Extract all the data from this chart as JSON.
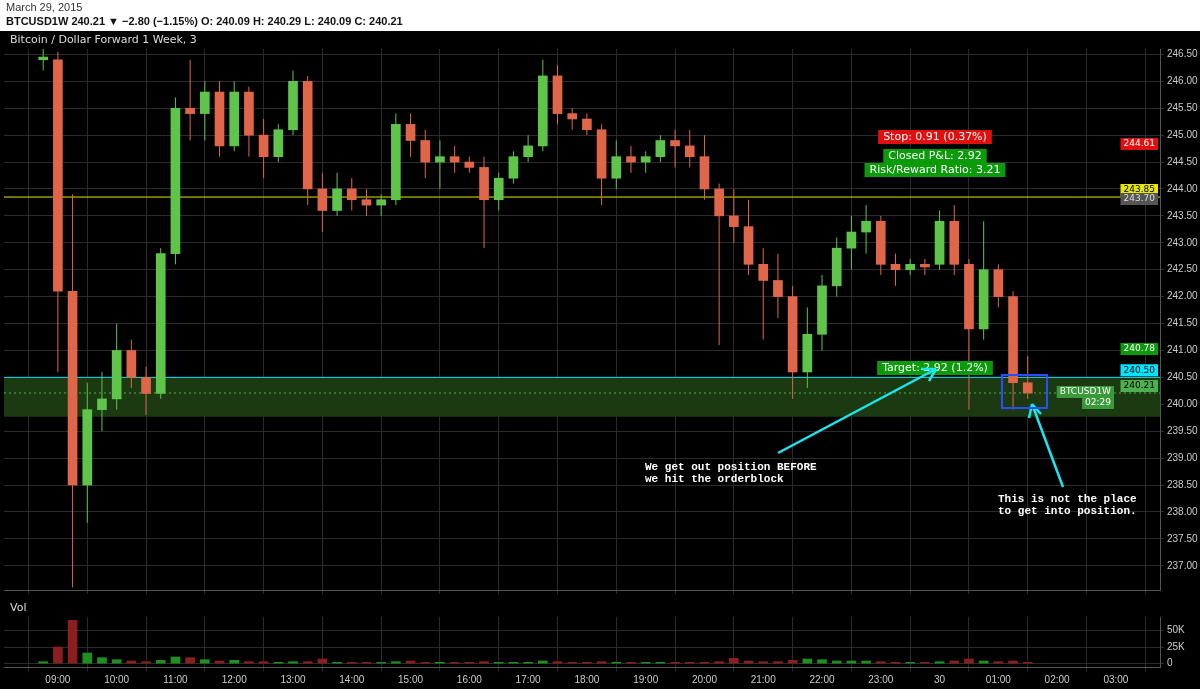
{
  "chart_data": [
    {
      "type": "candlestick",
      "title": "Bitcoin / Dollar Forward 1 Week, 3",
      "subtitle": "March 29, 2015",
      "x": [
        "2015-03-29T08:45",
        "2015-03-29T09:00",
        "2015-03-29T09:15",
        "2015-03-29T09:30",
        "2015-03-29T09:45",
        "2015-03-29T10:00",
        "2015-03-29T10:15",
        "2015-03-29T10:30",
        "2015-03-29T10:45",
        "2015-03-29T11:00",
        "2015-03-29T11:15",
        "2015-03-29T11:30",
        "2015-03-29T11:45",
        "2015-03-29T12:00",
        "2015-03-29T12:15",
        "2015-03-29T12:30",
        "2015-03-29T12:45",
        "2015-03-29T13:00",
        "2015-03-29T13:15",
        "2015-03-29T13:30",
        "2015-03-29T13:45",
        "2015-03-29T14:00",
        "2015-03-29T14:15",
        "2015-03-29T14:30",
        "2015-03-29T14:45",
        "2015-03-29T15:00",
        "2015-03-29T15:15",
        "2015-03-29T15:30",
        "2015-03-29T15:45",
        "2015-03-29T16:00",
        "2015-03-29T16:15",
        "2015-03-29T16:30",
        "2015-03-29T16:45",
        "2015-03-29T17:00",
        "2015-03-29T17:15",
        "2015-03-29T17:30",
        "2015-03-29T17:45",
        "2015-03-29T18:00",
        "2015-03-29T18:15",
        "2015-03-29T18:30",
        "2015-03-29T18:45",
        "2015-03-29T19:00",
        "2015-03-29T19:15",
        "2015-03-29T19:30",
        "2015-03-29T19:45",
        "2015-03-29T20:00",
        "2015-03-29T20:15",
        "2015-03-29T20:30",
        "2015-03-29T20:45",
        "2015-03-29T21:00",
        "2015-03-29T21:15",
        "2015-03-29T21:30",
        "2015-03-29T21:45",
        "2015-03-29T22:00",
        "2015-03-29T22:15",
        "2015-03-29T22:30",
        "2015-03-29T22:45",
        "2015-03-29T23:00",
        "2015-03-29T23:15",
        "2015-03-29T23:30",
        "2015-03-29T23:45",
        "2015-03-30T00:00",
        "2015-03-30T00:15",
        "2015-03-30T00:30",
        "2015-03-30T00:45",
        "2015-03-30T01:00",
        "2015-03-30T01:15",
        "2015-03-30T01:30"
      ],
      "ohlc": [
        [
          246.4,
          246.6,
          246.2,
          246.45
        ],
        [
          246.4,
          246.55,
          240.6,
          242.1
        ],
        [
          242.1,
          243.9,
          236.6,
          238.5
        ],
        [
          238.5,
          240.4,
          237.8,
          239.9
        ],
        [
          239.9,
          240.6,
          239.5,
          240.1
        ],
        [
          240.1,
          241.5,
          239.9,
          241.0
        ],
        [
          241.0,
          241.2,
          240.3,
          240.5
        ],
        [
          240.5,
          240.7,
          239.8,
          240.2
        ],
        [
          240.2,
          242.9,
          240.1,
          242.8
        ],
        [
          242.8,
          245.7,
          242.6,
          245.5
        ],
        [
          245.5,
          246.4,
          244.9,
          245.4
        ],
        [
          245.4,
          246.0,
          244.9,
          245.8
        ],
        [
          245.8,
          246.0,
          244.6,
          244.8
        ],
        [
          244.8,
          246.0,
          244.7,
          245.8
        ],
        [
          245.8,
          245.9,
          244.6,
          245.0
        ],
        [
          245.0,
          245.3,
          244.2,
          244.6
        ],
        [
          244.6,
          245.2,
          244.5,
          245.1
        ],
        [
          245.1,
          246.2,
          245.0,
          246.0
        ],
        [
          246.0,
          246.1,
          243.7,
          244.0
        ],
        [
          244.0,
          244.3,
          243.2,
          243.6
        ],
        [
          243.6,
          244.3,
          243.5,
          244.0
        ],
        [
          244.0,
          244.2,
          243.6,
          243.8
        ],
        [
          243.8,
          244.0,
          243.5,
          243.7
        ],
        [
          243.7,
          243.9,
          243.5,
          243.8
        ],
        [
          243.8,
          245.4,
          243.7,
          245.2
        ],
        [
          245.2,
          245.4,
          244.6,
          244.9
        ],
        [
          244.9,
          245.1,
          244.2,
          244.5
        ],
        [
          244.5,
          244.9,
          244.0,
          244.6
        ],
        [
          244.6,
          244.8,
          244.3,
          244.5
        ],
        [
          244.5,
          244.6,
          244.3,
          244.4
        ],
        [
          244.4,
          244.6,
          242.9,
          243.8
        ],
        [
          243.8,
          244.3,
          243.6,
          244.2
        ],
        [
          244.2,
          244.7,
          244.1,
          244.6
        ],
        [
          244.6,
          245.0,
          244.5,
          244.8
        ],
        [
          244.8,
          246.4,
          244.7,
          246.1
        ],
        [
          246.1,
          246.3,
          245.2,
          245.4
        ],
        [
          245.4,
          245.5,
          245.1,
          245.3
        ],
        [
          245.3,
          245.4,
          245.0,
          245.1
        ],
        [
          245.1,
          245.2,
          243.7,
          244.2
        ],
        [
          244.2,
          244.9,
          244.0,
          244.6
        ],
        [
          244.6,
          244.8,
          244.3,
          244.5
        ],
        [
          244.5,
          244.7,
          244.3,
          244.6
        ],
        [
          244.6,
          245.0,
          244.5,
          244.9
        ],
        [
          244.9,
          245.1,
          244.4,
          244.8
        ],
        [
          244.8,
          245.1,
          244.4,
          244.6
        ],
        [
          244.6,
          245.0,
          243.8,
          244.0
        ],
        [
          244.0,
          244.1,
          241.1,
          243.5
        ],
        [
          243.5,
          244.0,
          243.0,
          243.3
        ],
        [
          243.3,
          243.8,
          242.4,
          242.6
        ],
        [
          242.6,
          242.9,
          241.2,
          242.3
        ],
        [
          242.3,
          242.8,
          241.6,
          242.0
        ],
        [
          242.0,
          242.2,
          240.1,
          240.6
        ],
        [
          240.6,
          241.8,
          240.3,
          241.3
        ],
        [
          241.3,
          242.4,
          241.0,
          242.2
        ],
        [
          242.2,
          243.1,
          242.0,
          242.9
        ],
        [
          242.9,
          243.5,
          242.5,
          243.2
        ],
        [
          243.2,
          243.7,
          242.8,
          243.4
        ],
        [
          243.4,
          243.5,
          242.4,
          242.6
        ],
        [
          242.6,
          242.8,
          242.2,
          242.5
        ],
        [
          242.5,
          242.7,
          242.4,
          242.6
        ],
        [
          242.6,
          242.7,
          242.4,
          242.55
        ],
        [
          242.6,
          243.6,
          242.5,
          243.4
        ],
        [
          243.4,
          243.7,
          242.4,
          242.6
        ],
        [
          242.6,
          242.7,
          239.9,
          241.4
        ],
        [
          241.4,
          243.4,
          241.2,
          242.5
        ],
        [
          242.5,
          242.6,
          241.8,
          242.0
        ],
        [
          242.0,
          242.1,
          239.9,
          240.4
        ],
        [
          240.4,
          240.9,
          240.1,
          240.21
        ]
      ],
      "colors": [
        "#5ec44a",
        "#e0664a",
        "#e0664a",
        "#5ec44a",
        "#5ec44a",
        "#5ec44a",
        "#e0664a",
        "#e0664a",
        "#5ec44a",
        "#5ec44a",
        "#e0664a",
        "#5ec44a",
        "#e0664a",
        "#5ec44a",
        "#e0664a",
        "#e0664a",
        "#5ec44a",
        "#5ec44a",
        "#e0664a",
        "#e0664a",
        "#5ec44a",
        "#e0664a",
        "#e0664a",
        "#5ec44a",
        "#5ec44a",
        "#e0664a",
        "#e0664a",
        "#5ec44a",
        "#e0664a",
        "#e0664a",
        "#e0664a",
        "#5ec44a",
        "#5ec44a",
        "#5ec44a",
        "#5ec44a",
        "#e0664a",
        "#e0664a",
        "#e0664a",
        "#e0664a",
        "#5ec44a",
        "#e0664a",
        "#5ec44a",
        "#5ec44a",
        "#e0664a",
        "#e0664a",
        "#e0664a",
        "#e0664a",
        "#e0664a",
        "#e0664a",
        "#e0664a",
        "#e0664a",
        "#e0664a",
        "#5ec44a",
        "#5ec44a",
        "#5ec44a",
        "#5ec44a",
        "#5ec44a",
        "#e0664a",
        "#e0664a",
        "#5ec44a",
        "#e0664a",
        "#5ec44a",
        "#e0664a",
        "#e0664a",
        "#5ec44a",
        "#e0664a",
        "#e0664a",
        "#e0664a"
      ],
      "xlim": [
        "2015-03-29T08:05",
        "2015-03-30T03:45"
      ],
      "xticks": [
        {
          "value": "2015-03-29T09:00",
          "label": null
        },
        {
          "value": "2015-03-29T10:00",
          "label": null
        },
        {
          "value": "2015-03-29T11:00",
          "label": null
        },
        {
          "value": "2015-03-29T12:00",
          "label": null
        },
        {
          "value": "2015-03-29T13:00",
          "label": null
        },
        {
          "value": "2015-03-29T14:00",
          "label": null
        },
        {
          "value": "2015-03-29T15:00",
          "label": null
        },
        {
          "value": "2015-03-29T16:00",
          "label": null
        },
        {
          "value": "2015-03-29T17:00",
          "label": null
        },
        {
          "value": "2015-03-29T18:00",
          "label": null
        },
        {
          "value": "2015-03-29T19:00",
          "label": null
        },
        {
          "value": "2015-03-29T20:00",
          "label": null
        },
        {
          "value": "2015-03-29T21:00",
          "label": null
        },
        {
          "value": "2015-03-29T22:00",
          "label": null
        },
        {
          "value": "2015-03-29T23:00",
          "label": null
        },
        {
          "value": "2015-03-30T00:00",
          "label": null
        },
        {
          "value": "2015-03-30T01:00",
          "label": null
        },
        {
          "value": "2015-03-30T02:00",
          "label": null
        },
        {
          "value": "2015-03-30T03:00",
          "label": null
        }
      ],
      "ylim": [
        236.55,
        246.6
      ],
      "yticks": [
        {
          "value": 237,
          "label": "237.00"
        },
        {
          "value": 237.5,
          "label": "237.50"
        },
        {
          "value": 238,
          "label": "238.00"
        },
        {
          "value": 238.5,
          "label": "238.50"
        },
        {
          "value": 239,
          "label": "239.00"
        },
        {
          "value": 239.5,
          "label": "239.50"
        },
        {
          "value": 240,
          "label": "240.00"
        },
        {
          "value": 240.5,
          "label": "240.50"
        },
        {
          "value": 241,
          "label": "241.00"
        },
        {
          "value": 241.5,
          "label": "241.50"
        },
        {
          "value": 242,
          "label": "242.00"
        },
        {
          "value": 242.5,
          "label": "242.50"
        },
        {
          "value": 243,
          "label": "243.00"
        },
        {
          "value": 243.5,
          "label": "243.50"
        },
        {
          "value": 244,
          "label": "244.00"
        },
        {
          "value": 244.5,
          "label": "244.50"
        },
        {
          "value": 245,
          "label": "245.00"
        },
        {
          "value": 245.5,
          "label": "245.50"
        },
        {
          "value": 246,
          "label": "246.00"
        },
        {
          "value": 246.5,
          "label": "246.50"
        }
      ],
      "tick_labels": "y",
      "grid": true,
      "legend": false,
      "bands": [
        {
          "axis": "y",
          "from": 239.77,
          "to": 240.5,
          "color": "#1c3a12"
        }
      ],
      "ref_lines": [
        {
          "axis": "y",
          "value": 243.85,
          "label": "243.85",
          "color": "#e6e600",
          "line_style": "solid"
        },
        {
          "axis": "y",
          "value": 240.5,
          "label": "240.50",
          "color": "#00e5ff",
          "line_style": "solid"
        },
        {
          "axis": "y",
          "value": 240.21,
          "label": "240.21",
          "color": "#4caf50",
          "line_style": "dotted"
        }
      ],
      "annotations": [
        "BTCUSD1W 240.21 ▼ −2.80 (−1.15%) O: 240.09 H: 240.29 L: 240.09 C: 240.21",
        "Stop: 0.91 (0.37%)",
        "Closed P&L: 2.92",
        "Risk/Reward Ratio: 3.21",
        "Target: 2.92 (1.2%)",
        "We get out position BEFORE\nwe hit the orderblock",
        "This is not the place\nto get into position.",
        "244.61",
        "243.70",
        "240.78",
        "02:29",
        "BTCUSD1W"
      ]
    },
    {
      "type": "bar",
      "title": "Vol",
      "x": [
        "2015-03-29T08:45",
        "2015-03-29T09:00",
        "2015-03-29T09:15",
        "2015-03-29T09:30",
        "2015-03-29T09:45",
        "2015-03-29T10:00",
        "2015-03-29T10:15",
        "2015-03-29T10:30",
        "2015-03-29T10:45",
        "2015-03-29T11:00",
        "2015-03-29T11:15",
        "2015-03-29T11:30",
        "2015-03-29T11:45",
        "2015-03-29T12:00",
        "2015-03-29T12:15",
        "2015-03-29T12:30",
        "2015-03-29T12:45",
        "2015-03-29T13:00",
        "2015-03-29T13:15",
        "2015-03-29T13:30",
        "2015-03-29T13:45",
        "2015-03-29T14:00",
        "2015-03-29T14:15",
        "2015-03-29T14:30",
        "2015-03-29T14:45",
        "2015-03-29T15:00",
        "2015-03-29T15:15",
        "2015-03-29T15:30",
        "2015-03-29T15:45",
        "2015-03-29T16:00",
        "2015-03-29T16:15",
        "2015-03-29T16:30",
        "2015-03-29T16:45",
        "2015-03-29T17:00",
        "2015-03-29T17:15",
        "2015-03-29T17:30",
        "2015-03-29T17:45",
        "2015-03-29T18:00",
        "2015-03-29T18:15",
        "2015-03-29T18:30",
        "2015-03-29T18:45",
        "2015-03-29T19:00",
        "2015-03-29T19:15",
        "2015-03-29T19:30",
        "2015-03-29T19:45",
        "2015-03-29T20:00",
        "2015-03-29T20:15",
        "2015-03-29T20:30",
        "2015-03-29T20:45",
        "2015-03-29T21:00",
        "2015-03-29T21:15",
        "2015-03-29T21:30",
        "2015-03-29T21:45",
        "2015-03-29T22:00",
        "2015-03-29T22:15",
        "2015-03-29T22:30",
        "2015-03-29T22:45",
        "2015-03-29T23:00",
        "2015-03-29T23:15",
        "2015-03-29T23:30",
        "2015-03-29T23:45",
        "2015-03-30T00:00",
        "2015-03-30T00:15",
        "2015-03-30T00:30",
        "2015-03-30T00:45",
        "2015-03-30T01:00",
        "2015-03-30T01:15",
        "2015-03-30T01:30"
      ],
      "values": [
        3000,
        25000,
        65000,
        16000,
        9000,
        6000,
        4000,
        3000,
        5000,
        10000,
        9000,
        6000,
        4000,
        5000,
        3000,
        3000,
        2000,
        3000,
        3000,
        7000,
        2000,
        2000,
        2000,
        2000,
        3000,
        4000,
        2000,
        2000,
        2000,
        2000,
        3000,
        2000,
        2000,
        2000,
        4000,
        3000,
        2000,
        2000,
        3000,
        2000,
        2000,
        2000,
        2000,
        2000,
        2000,
        2000,
        3000,
        8000,
        4000,
        3000,
        3000,
        5000,
        7000,
        6000,
        4000,
        4000,
        4000,
        3000,
        2000,
        2000,
        2000,
        3000,
        4000,
        7000,
        4000,
        3000,
        4000,
        2000
      ],
      "colors": [
        "#1f8f1f",
        "#8b1f1f",
        "#8b1f1f",
        "#1f8f1f",
        "#1f8f1f",
        "#1f8f1f",
        "#8b1f1f",
        "#8b1f1f",
        "#1f8f1f",
        "#1f8f1f",
        "#8b1f1f",
        "#1f8f1f",
        "#8b1f1f",
        "#1f8f1f",
        "#8b1f1f",
        "#8b1f1f",
        "#1f8f1f",
        "#1f8f1f",
        "#8b1f1f",
        "#8b1f1f",
        "#1f8f1f",
        "#8b1f1f",
        "#8b1f1f",
        "#1f8f1f",
        "#1f8f1f",
        "#8b1f1f",
        "#8b1f1f",
        "#1f8f1f",
        "#8b1f1f",
        "#8b1f1f",
        "#8b1f1f",
        "#1f8f1f",
        "#1f8f1f",
        "#1f8f1f",
        "#1f8f1f",
        "#8b1f1f",
        "#8b1f1f",
        "#8b1f1f",
        "#8b1f1f",
        "#1f8f1f",
        "#8b1f1f",
        "#1f8f1f",
        "#1f8f1f",
        "#8b1f1f",
        "#8b1f1f",
        "#8b1f1f",
        "#8b1f1f",
        "#8b1f1f",
        "#8b1f1f",
        "#8b1f1f",
        "#8b1f1f",
        "#8b1f1f",
        "#1f8f1f",
        "#1f8f1f",
        "#1f8f1f",
        "#1f8f1f",
        "#1f8f1f",
        "#8b1f1f",
        "#8b1f1f",
        "#1f8f1f",
        "#8b1f1f",
        "#1f8f1f",
        "#8b1f1f",
        "#8b1f1f",
        "#1f8f1f",
        "#8b1f1f",
        "#8b1f1f",
        "#8b1f1f"
      ],
      "xlim": [
        "2015-03-29T08:05",
        "2015-03-30T03:45"
      ],
      "xticks": [
        {
          "value": "2015-03-29T09:00",
          "label": "09:00"
        },
        {
          "value": "2015-03-29T10:00",
          "label": "10:00"
        },
        {
          "value": "2015-03-29T11:00",
          "label": "11:00"
        },
        {
          "value": "2015-03-29T12:00",
          "label": "12:00"
        },
        {
          "value": "2015-03-29T13:00",
          "label": "13:00"
        },
        {
          "value": "2015-03-29T14:00",
          "label": "14:00"
        },
        {
          "value": "2015-03-29T15:00",
          "label": "15:00"
        },
        {
          "value": "2015-03-29T16:00",
          "label": "16:00"
        },
        {
          "value": "2015-03-29T17:00",
          "label": "17:00"
        },
        {
          "value": "2015-03-29T18:00",
          "label": "18:00"
        },
        {
          "value": "2015-03-29T19:00",
          "label": "19:00"
        },
        {
          "value": "2015-03-29T20:00",
          "label": "20:00"
        },
        {
          "value": "2015-03-29T21:00",
          "label": "21:00"
        },
        {
          "value": "2015-03-29T22:00",
          "label": "22:00"
        },
        {
          "value": "2015-03-29T23:00",
          "label": "23:00"
        },
        {
          "value": "2015-03-30T00:00",
          "label": "30"
        },
        {
          "value": "2015-03-30T01:00",
          "label": "01:00"
        },
        {
          "value": "2015-03-30T02:00",
          "label": "02:00"
        },
        {
          "value": "2015-03-30T03:00",
          "label": "03:00"
        }
      ],
      "ylim": [
        -5000,
        70000
      ],
      "yticks": [
        0,
        {
          "value": 25000,
          "label": "25K"
        },
        {
          "value": 50000,
          "label": "50K"
        }
      ],
      "grid": true,
      "legend": false
    }
  ]
}
